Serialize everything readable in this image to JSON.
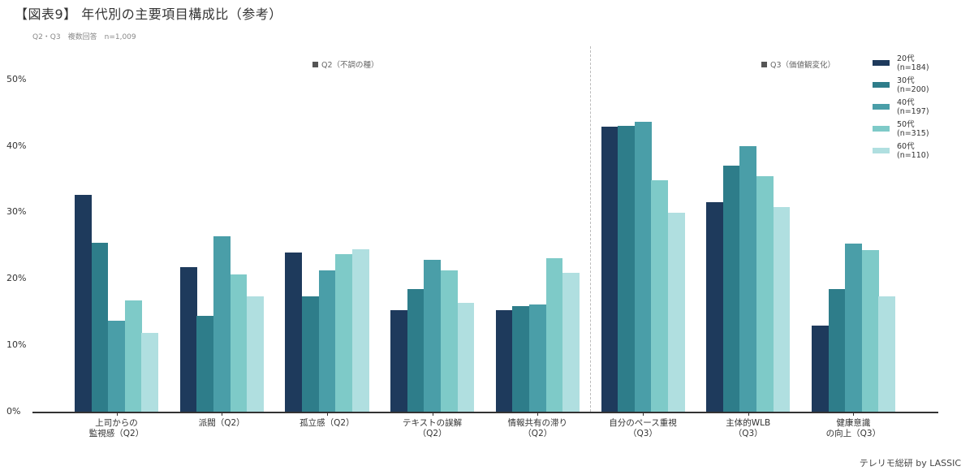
{
  "header": {
    "title": "【図表9】 年代別の主要項目構成比（参考）",
    "subtitle": "Q2・Q3　複数回答　n=1,009"
  },
  "sections": [
    {
      "label": "Q2（不調の種）"
    },
    {
      "label": "Q3（価値観変化）"
    }
  ],
  "footer": {
    "credit": "テレリモ総研 by LASSIC"
  },
  "chart_data": {
    "type": "bar",
    "title": "【図表9】 年代別の主要項目構成比（参考）",
    "subtitle": "Q2・Q3　複数回答　n=1,009",
    "xlabel": "",
    "ylabel": "",
    "ylim": [
      0,
      50
    ],
    "yticks": [
      "0%",
      "10%",
      "20%",
      "30%",
      "40%",
      "50%"
    ],
    "grid": false,
    "legend_position": "right-top",
    "categories": [
      "上司からの\n監視感（Q2）",
      "派閥（Q2）",
      "孤立感（Q2）",
      "テキストの誤解\n（Q2）",
      "情報共有の滞り\n（Q2）",
      "自分のペース重視\n（Q3）",
      "主体的WLB\n（Q3）",
      "健康意識\nの向上（Q3）"
    ],
    "series": [
      {
        "name": "20代\n(n=184)",
        "color": "#1e3a5c",
        "values": [
          32.7,
          21.8,
          24.0,
          15.3,
          15.3,
          43.0,
          31.6,
          13.0
        ]
      },
      {
        "name": "30代\n(n=200)",
        "color": "#2e7d8a",
        "values": [
          25.5,
          14.5,
          17.5,
          18.5,
          16.0,
          43.1,
          37.1,
          18.5
        ]
      },
      {
        "name": "40代\n(n=197)",
        "color": "#4a9ea8",
        "values": [
          13.8,
          26.5,
          21.4,
          22.9,
          16.2,
          43.7,
          40.1,
          25.4
        ]
      },
      {
        "name": "50代\n(n=315)",
        "color": "#7ecac8",
        "values": [
          16.8,
          20.7,
          23.8,
          21.3,
          23.2,
          35.0,
          35.6,
          24.4
        ]
      },
      {
        "name": "60代\n(n=110)",
        "color": "#b0dfe0",
        "values": [
          11.9,
          17.4,
          24.6,
          16.5,
          21.0,
          30.1,
          30.9,
          17.4
        ]
      }
    ],
    "annotations": [
      "Q2（不調の種）",
      "Q3（価値観変化）"
    ]
  }
}
